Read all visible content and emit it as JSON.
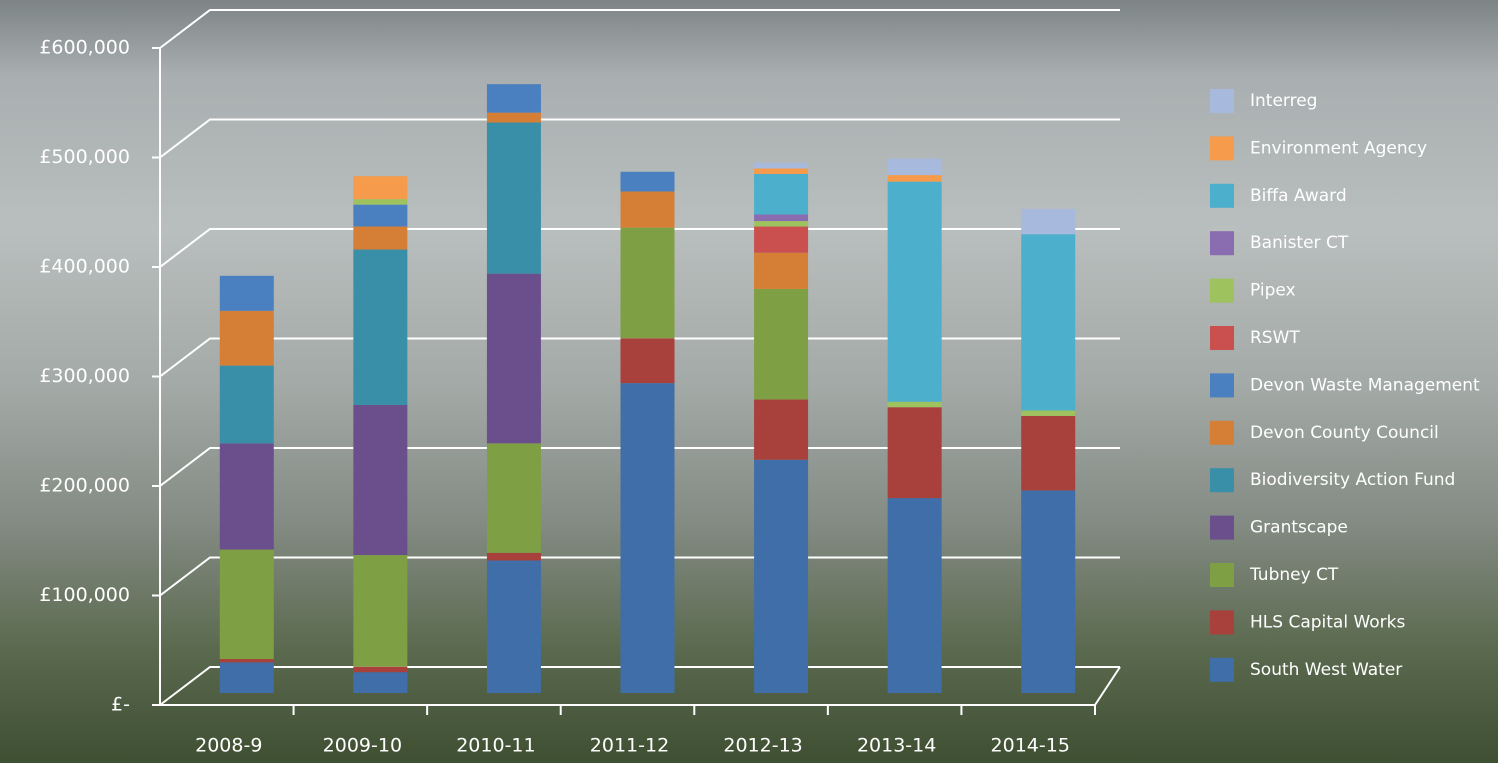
{
  "chart_data": {
    "type": "stacked_bar",
    "categories": [
      "2008-9",
      "2009-10",
      "2010-11",
      "2011-12",
      "2012-13",
      "2013-14",
      "2014-15"
    ],
    "ylim": [
      0,
      600000
    ],
    "yticks": [
      {
        "value": 0,
        "label": "£-"
      },
      {
        "value": 100000,
        "label": "£100,000"
      },
      {
        "value": 200000,
        "label": "£200,000"
      },
      {
        "value": 300000,
        "label": "£300,000"
      },
      {
        "value": 400000,
        "label": "£400,000"
      },
      {
        "value": 500000,
        "label": "£500,000"
      },
      {
        "value": 600000,
        "label": "£600,000"
      }
    ],
    "grid": true,
    "legend": "right",
    "series": [
      {
        "name": "South West Water",
        "color": "#3f6ea8",
        "values": [
          28000,
          19000,
          121000,
          283000,
          213000,
          178000,
          185000
        ]
      },
      {
        "name": "HLS Capital Works",
        "color": "#a8403c",
        "values": [
          3000,
          5000,
          7000,
          41000,
          55000,
          83000,
          68000
        ]
      },
      {
        "name": "Tubney CT",
        "color": "#7f9f45",
        "values": [
          100000,
          102000,
          100000,
          101000,
          101000,
          0,
          0
        ]
      },
      {
        "name": "Grantscape",
        "color": "#6a4f8c",
        "values": [
          97000,
          137000,
          155000,
          0,
          0,
          0,
          0
        ]
      },
      {
        "name": "Biodiversity Action Fund",
        "color": "#3a8fa8",
        "values": [
          71000,
          142000,
          138000,
          0,
          0,
          0,
          0
        ]
      },
      {
        "name": "Devon County Council",
        "color": "#d47f35",
        "values": [
          50000,
          21000,
          9000,
          33000,
          33000,
          0,
          0
        ]
      },
      {
        "name": "Devon Waste Management",
        "color": "#4a7fc0",
        "values": [
          32000,
          20000,
          26000,
          18000,
          0,
          0,
          0
        ]
      },
      {
        "name": "RSWT",
        "color": "#c9504f",
        "values": [
          0,
          0,
          0,
          0,
          24000,
          0,
          0
        ]
      },
      {
        "name": "Pipex",
        "color": "#9dc25e",
        "values": [
          0,
          5000,
          0,
          0,
          5000,
          5000,
          5000
        ]
      },
      {
        "name": "Banister CT",
        "color": "#8a6cb0",
        "values": [
          0,
          0,
          0,
          0,
          6000,
          0,
          0
        ]
      },
      {
        "name": "Biffa Award",
        "color": "#4cb0cc",
        "values": [
          0,
          0,
          0,
          0,
          37000,
          201000,
          161000
        ]
      },
      {
        "name": "Environment Agency",
        "color": "#f59b4b",
        "values": [
          0,
          21000,
          0,
          0,
          5000,
          6000,
          0
        ]
      },
      {
        "name": "Interreg",
        "color": "#a7b9dd",
        "values": [
          0,
          0,
          0,
          0,
          5000,
          15000,
          23000
        ]
      }
    ]
  }
}
